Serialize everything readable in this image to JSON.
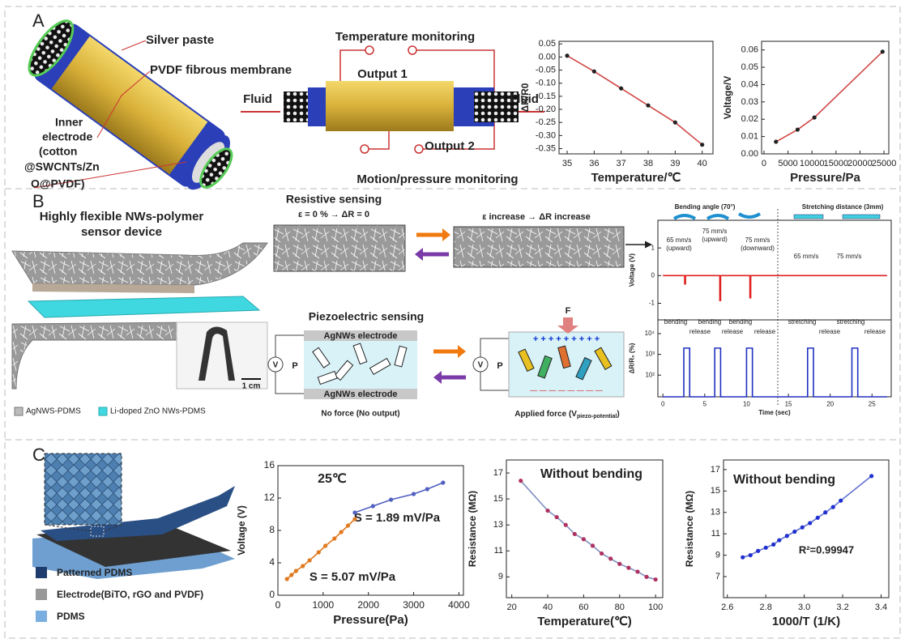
{
  "panel_labels": [
    "A",
    "B",
    "C"
  ],
  "panel_a": {
    "silver_paste": "Silver paste",
    "pvdf": "PVDF fibrous membrane",
    "inner_electrode": [
      "Inner",
      "electrode",
      "(cotton",
      "@SWCNTs/Zn",
      "O@PVDF)"
    ],
    "temperature_monitoring": "Temperature monitoring",
    "output_1": "Output 1",
    "output_2": "Output 2",
    "fluid_in": "Fluid",
    "fluid_out": "Fluid",
    "motion_monitoring": "Motion/pressure monitoring"
  },
  "panel_b": {
    "device_title": [
      "Highly flexible NWs-polymer",
      "sensor device"
    ],
    "scale": "1 cm",
    "legend": [
      "AgNWS-PDMS",
      "Li-doped ZnO NWs-PDMS"
    ],
    "resistive_title": "Resistive sensing",
    "resistive_rest": "ε = 0 % → ΔR = 0",
    "resistive_strain": "ε  increase → ΔR  increase",
    "piezo_title": "Piezoelectric sensing",
    "electrode_labels": [
      "AgNWs electrode",
      "AgNWs electrode"
    ],
    "voltmeter": [
      "V",
      "V"
    ],
    "polarization": [
      "P",
      "P"
    ],
    "force": "F",
    "positive_charges": "+   +   +   +   +   +   +   +   +",
    "negative_charges": "—   —   —   —   —   —   —   —",
    "no_force": "No force (No output)",
    "applied_force": "Applied force (V",
    "applied_force_sub": "piezo-potential",
    "applied_force_end": ")"
  },
  "panel_c": {
    "legend": [
      "Patterned PDMS",
      "Electrode(BiTO, rGO and PVDF)",
      "PDMS"
    ]
  },
  "chart_data": [
    {
      "type": "line",
      "xlabel": "Temperature/℃",
      "ylabel": "ΔR/R0",
      "xlim": [
        34.7,
        40.4
      ],
      "xticks": [
        35,
        36,
        37,
        38,
        39,
        40
      ],
      "ylim": [
        -0.37,
        0.06
      ],
      "yticks": [
        0.05,
        {
          "value": 0,
          "label": "0.00"
        },
        -0.05,
        {
          "value": -0.1,
          "label": "-0.10"
        },
        -0.15,
        {
          "value": -0.2,
          "label": "-0.20"
        },
        -0.25,
        {
          "value": -0.3,
          "label": "-0.30"
        },
        -0.35
      ],
      "markers": true,
      "marker_color": "#222222",
      "series": [
        {
          "color": "#d04848",
          "x": [
            35,
            36,
            37,
            38,
            39,
            40
          ],
          "values": [
            0.005,
            -0.055,
            -0.12,
            -0.185,
            -0.25,
            -0.335
          ]
        }
      ]
    },
    {
      "type": "line",
      "xlabel": "Pressure/Pa",
      "ylabel": "Voltage/V",
      "xlim": [
        -500,
        26000
      ],
      "xticks": [
        0,
        5000,
        10000,
        15000,
        20000,
        25000
      ],
      "ylim": [
        0,
        0.065
      ],
      "yticks": [
        {
          "value": 0,
          "label": "0.00"
        },
        0.01,
        0.02,
        0.03,
        0.04,
        0.05,
        0.06
      ],
      "markers": true,
      "marker_color": "#222222",
      "series": [
        {
          "color": "#d04848",
          "x": [
            2500,
            7000,
            10500,
            24700
          ],
          "values": [
            0.007,
            0.014,
            0.021,
            0.059
          ]
        }
      ]
    },
    {
      "type": "line",
      "ylabel": "Voltage (V)",
      "xlim": [
        -0.6,
        27.3
      ],
      "ylim": [
        -1.6,
        2.0
      ],
      "yticks": [
        1,
        0,
        -1
      ],
      "series": [
        {
          "color": "#e02020",
          "x": [
            0,
            2.6,
            2.6,
            2.7,
            2.7,
            6.8,
            6.8,
            6.9,
            6.9,
            10.4,
            10.4,
            10.5,
            10.5,
            26.8
          ],
          "values": [
            0,
            0,
            -0.3,
            -0.3,
            0,
            0,
            -0.9,
            -0.9,
            0,
            0,
            -0.8,
            -0.8,
            0,
            0
          ]
        }
      ],
      "annotations": [
        "Bending angle (70°)",
        "Stretching distance (3mm)",
        "65 mm/s",
        "(upward)",
        "75 mm/s",
        "(upward)",
        "75 mm/s",
        "(downward)",
        "65 mm/s",
        "75 mm/s",
        "bending",
        "release",
        "bending",
        "release",
        "bending",
        "release",
        "stretching",
        "release",
        "stretching",
        "release"
      ]
    },
    {
      "type": "line",
      "ylabel": "ΔR/R₀ (%)",
      "xlabel": "Time (sec)",
      "ylog": true,
      "xlim": [
        -0.6,
        27.3
      ],
      "xticks": [
        0,
        5,
        10,
        15,
        20,
        25
      ],
      "ylim": [
        9,
        46000
      ],
      "yticks": [
        {
          "value": 10000,
          "label": "10⁴"
        },
        {
          "value": 1000,
          "label": "10³"
        },
        {
          "value": 100,
          "label": "10²"
        }
      ],
      "series": [
        {
          "color": "#2030c0",
          "x": [
            0,
            2.5,
            2.5,
            3.2,
            3.2,
            6.2,
            6.2,
            6.9,
            6.9,
            10,
            10,
            10.7,
            10.7,
            17.3,
            17.3,
            18,
            18,
            22.6,
            22.6,
            23.3,
            23.3,
            26.8
          ],
          "values": [
            9,
            9,
            2000,
            2000,
            9,
            9,
            2000,
            2000,
            9,
            9,
            2000,
            2000,
            9,
            9,
            2000,
            2000,
            9,
            9,
            2000,
            2000,
            9,
            9
          ]
        }
      ]
    },
    {
      "type": "line",
      "xlabel": "Pressure(Pa)",
      "ylabel": "Voltage (V)",
      "xlim": [
        0,
        4100
      ],
      "xticks": [
        0,
        1000,
        2000,
        3000,
        4000
      ],
      "ylim": [
        0,
        16
      ],
      "yticks": [
        0,
        4,
        8,
        12,
        16
      ],
      "markers": true,
      "annotations": [
        "25℃",
        "S = 1.89 mV/Pa",
        "S = 5.07 mV/Pa"
      ],
      "series": [
        {
          "color": "#e07a20",
          "x": [
            200,
            300,
            400,
            550,
            700,
            900,
            1050,
            1250,
            1400,
            1550,
            1700
          ],
          "values": [
            2,
            2.5,
            3,
            3.6,
            4.3,
            5.3,
            6.1,
            7,
            7.8,
            8.6,
            9.4
          ]
        },
        {
          "color": "#5060c0",
          "x": [
            1700,
            2100,
            2500,
            3000,
            3300,
            3650
          ],
          "values": [
            10.2,
            11,
            11.8,
            12.5,
            13.1,
            13.9
          ]
        }
      ]
    },
    {
      "type": "line",
      "title": "Without bending",
      "xlabel": "Temperature(℃)",
      "ylabel": "Resistance (MΩ)",
      "xlim": [
        17,
        104
      ],
      "xticks": [
        20,
        40,
        60,
        80,
        100
      ],
      "ylim": [
        7.4,
        18
      ],
      "yticks": [
        9,
        11,
        13,
        15,
        17
      ],
      "markers": true,
      "marker_color": "#b03060",
      "series": [
        {
          "color": "#8090c0",
          "x": [
            25,
            40,
            45,
            50,
            55,
            60,
            65,
            70,
            75,
            80,
            85,
            90,
            95,
            100
          ],
          "values": [
            16.4,
            14.1,
            13.6,
            13.0,
            12.3,
            11.9,
            11.4,
            10.8,
            10.4,
            10.0,
            9.7,
            9.4,
            9.0,
            8.8
          ]
        }
      ]
    },
    {
      "type": "line",
      "title": "Without bending",
      "xlabel": "1000/T (1/K)",
      "ylabel": "Resistance (MΩ)",
      "xlim": [
        2.58,
        3.44
      ],
      "xticks": [
        2.6,
        2.8,
        {
          "value": 3,
          "label": "3.0"
        },
        3.2,
        3.4
      ],
      "ylim": [
        5.03,
        17.9
      ],
      "yticks": [
        7,
        9,
        11,
        13,
        15,
        17
      ],
      "markers": true,
      "marker_color": "#2030d0",
      "annotations": [
        "R²=0.99947"
      ],
      "series": [
        {
          "color": "#6070d0",
          "x": [
            2.68,
            2.72,
            2.76,
            2.8,
            2.84,
            2.87,
            2.91,
            2.95,
            2.99,
            3.03,
            3.07,
            3.11,
            3.15,
            3.19,
            3.35
          ],
          "values": [
            8.8,
            9.0,
            9.4,
            9.7,
            10.0,
            10.4,
            10.8,
            11.2,
            11.6,
            12.0,
            12.5,
            13.0,
            13.5,
            14.1,
            16.4
          ]
        }
      ]
    }
  ]
}
